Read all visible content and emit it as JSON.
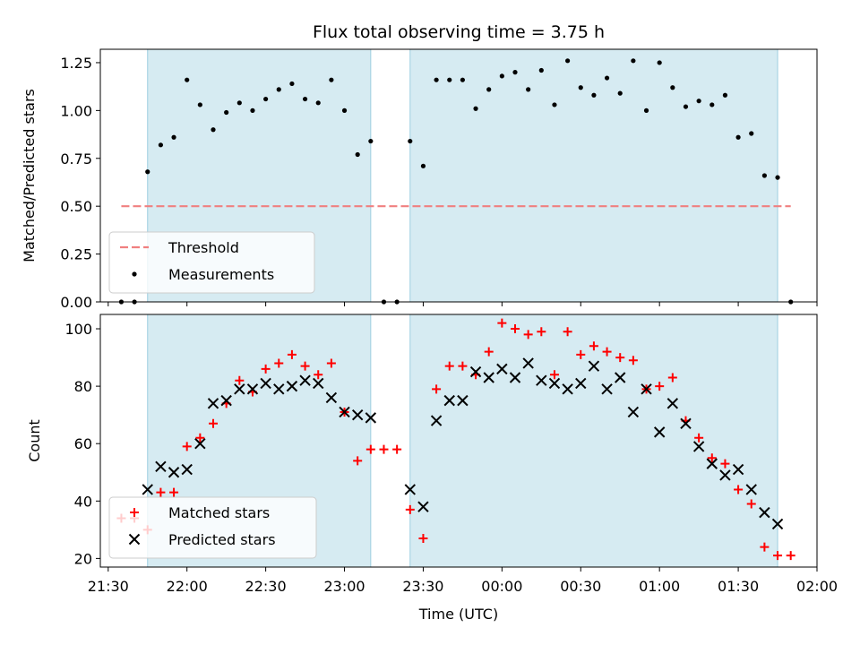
{
  "chart_data": [
    {
      "type": "scatter",
      "title": "Flux total observing time = 3.75 h",
      "xlabel": "",
      "ylabel": "Matched/Predicted stars",
      "xlim": [
        "21:27",
        "02:00"
      ],
      "ylim": [
        0,
        1.32
      ],
      "yticks": [
        0.0,
        0.25,
        0.5,
        0.75,
        1.0,
        1.25
      ],
      "ytick_labels": [
        "0.00",
        "0.25",
        "0.50",
        "0.75",
        "1.00",
        "1.25"
      ],
      "shaded_intervals": [
        [
          "21:45",
          "23:10"
        ],
        [
          "23:25",
          "01:45"
        ]
      ],
      "threshold": {
        "name": "Threshold",
        "value": 0.5,
        "x_range": [
          "21:35",
          "01:50"
        ],
        "color": "#f08080",
        "style": "dashed"
      },
      "series": [
        {
          "name": "Measurements",
          "color": "#000000",
          "marker": "dot",
          "x": [
            "21:35",
            "21:40",
            "21:45",
            "21:50",
            "21:55",
            "22:00",
            "22:05",
            "22:10",
            "22:15",
            "22:20",
            "22:25",
            "22:30",
            "22:35",
            "22:40",
            "22:45",
            "22:50",
            "22:55",
            "23:00",
            "23:05",
            "23:10",
            "23:15",
            "23:20",
            "23:25",
            "23:30",
            "23:35",
            "23:40",
            "23:45",
            "23:50",
            "23:55",
            "00:00",
            "00:05",
            "00:10",
            "00:15",
            "00:20",
            "00:25",
            "00:30",
            "00:35",
            "00:40",
            "00:45",
            "00:50",
            "00:55",
            "01:00",
            "01:05",
            "01:10",
            "01:15",
            "01:20",
            "01:25",
            "01:30",
            "01:35",
            "01:40",
            "01:45",
            "01:50"
          ],
          "y": [
            0.0,
            0.0,
            0.68,
            0.82,
            0.86,
            1.16,
            1.03,
            0.9,
            0.99,
            1.04,
            1.0,
            1.06,
            1.11,
            1.14,
            1.06,
            1.04,
            1.16,
            1.0,
            0.77,
            0.84,
            0.0,
            0.0,
            0.84,
            0.71,
            1.16,
            1.16,
            1.16,
            1.01,
            1.11,
            1.18,
            1.2,
            1.11,
            1.21,
            1.03,
            1.26,
            1.12,
            1.08,
            1.17,
            1.09,
            1.26,
            1.0,
            1.25,
            1.12,
            1.02,
            1.05,
            1.03,
            1.08,
            0.86,
            0.88,
            0.66,
            0.65,
            0.0
          ]
        }
      ],
      "legend": {
        "position": "lower-left",
        "entries": [
          "Threshold",
          "Measurements"
        ]
      }
    },
    {
      "type": "scatter",
      "title": "",
      "xlabel": "Time (UTC)",
      "ylabel": "Count",
      "xlim": [
        "21:27",
        "02:00"
      ],
      "ylim": [
        17,
        105
      ],
      "xticks": [
        "21:30",
        "22:00",
        "22:30",
        "23:00",
        "23:30",
        "00:00",
        "00:30",
        "01:00",
        "01:30",
        "02:00"
      ],
      "yticks": [
        20,
        40,
        60,
        80,
        100
      ],
      "shaded_intervals": [
        [
          "21:45",
          "23:10"
        ],
        [
          "23:25",
          "01:45"
        ]
      ],
      "series": [
        {
          "name": "Matched stars",
          "color": "#ff0000",
          "marker": "plus",
          "x": [
            "21:35",
            "21:40",
            "21:45",
            "21:50",
            "21:55",
            "22:00",
            "22:05",
            "22:10",
            "22:15",
            "22:20",
            "22:25",
            "22:30",
            "22:35",
            "22:40",
            "22:45",
            "22:50",
            "22:55",
            "23:00",
            "23:05",
            "23:10",
            "23:15",
            "23:20",
            "23:25",
            "23:30",
            "23:35",
            "23:40",
            "23:45",
            "23:50",
            "23:55",
            "00:00",
            "00:05",
            "00:10",
            "00:15",
            "00:20",
            "00:25",
            "00:30",
            "00:35",
            "00:40",
            "00:45",
            "00:50",
            "00:55",
            "01:00",
            "01:05",
            "01:10",
            "01:15",
            "01:20",
            "01:25",
            "01:30",
            "01:35",
            "01:40",
            "01:45",
            "01:50"
          ],
          "y": [
            34,
            34,
            30,
            43,
            43,
            59,
            62,
            67,
            74,
            82,
            78,
            86,
            88,
            91,
            87,
            84,
            88,
            71,
            54,
            58,
            58,
            58,
            37,
            27,
            79,
            87,
            87,
            84,
            92,
            102,
            100,
            98,
            99,
            84,
            99,
            91,
            94,
            92,
            90,
            89,
            79,
            80,
            83,
            68,
            62,
            55,
            53,
            44,
            39,
            24,
            21,
            21
          ]
        },
        {
          "name": "Predicted stars",
          "color": "#000000",
          "marker": "x",
          "x": [
            "21:45",
            "21:50",
            "21:55",
            "22:00",
            "22:05",
            "22:10",
            "22:15",
            "22:20",
            "22:25",
            "22:30",
            "22:35",
            "22:40",
            "22:45",
            "22:50",
            "22:55",
            "23:00",
            "23:05",
            "23:10",
            "23:25",
            "23:30",
            "23:35",
            "23:40",
            "23:45",
            "23:50",
            "23:55",
            "00:00",
            "00:05",
            "00:10",
            "00:15",
            "00:20",
            "00:25",
            "00:30",
            "00:35",
            "00:40",
            "00:45",
            "00:50",
            "00:55",
            "01:00",
            "01:05",
            "01:10",
            "01:15",
            "01:20",
            "01:25",
            "01:30",
            "01:35",
            "01:40",
            "01:45"
          ],
          "y": [
            44,
            52,
            50,
            51,
            60,
            74,
            75,
            79,
            79,
            81,
            79,
            80,
            82,
            81,
            76,
            71,
            70,
            69,
            44,
            38,
            68,
            75,
            75,
            85,
            83,
            86,
            83,
            88,
            82,
            81,
            79,
            81,
            87,
            79,
            83,
            71,
            79,
            64,
            74,
            67,
            59,
            53,
            49,
            51,
            44,
            36,
            32
          ]
        }
      ],
      "legend": {
        "position": "lower-left",
        "entries": [
          "Matched stars",
          "Predicted stars"
        ]
      }
    }
  ]
}
